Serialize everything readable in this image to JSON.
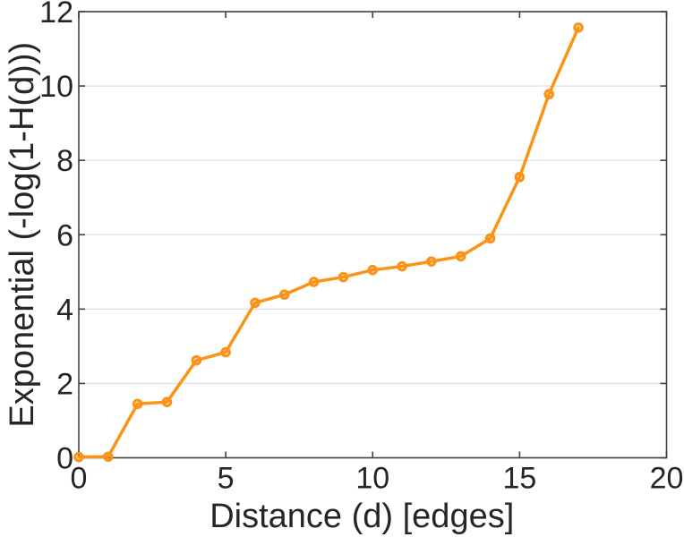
{
  "chart_data": {
    "type": "line",
    "title": "",
    "xlabel": "Distance (d) [edges]",
    "ylabel": "Exponential (-log(1-H(d)))",
    "x": [
      0,
      1,
      2,
      3,
      4,
      5,
      6,
      7,
      8,
      9,
      10,
      11,
      12,
      13,
      14,
      15,
      16,
      17
    ],
    "series": [
      {
        "name": "Exponential (-log(1-H(d)))",
        "values": [
          0.02,
          0.03,
          1.45,
          1.5,
          2.62,
          2.84,
          4.17,
          4.39,
          4.73,
          4.86,
          5.05,
          5.15,
          5.28,
          5.42,
          5.9,
          7.55,
          9.78,
          11.57
        ],
        "line_width": 3.5,
        "marker": "open-circle",
        "marker_radius": 4.2,
        "marker_stroke": 3.2,
        "color": "#FA9419"
      }
    ],
    "xlim": [
      0,
      20
    ],
    "ylim": [
      0,
      12
    ],
    "xticks": [
      0,
      5,
      10,
      15,
      20
    ],
    "xtick_labels": [
      "0",
      "5",
      "10",
      "15",
      "20"
    ],
    "yticks": [
      0,
      2,
      4,
      6,
      8,
      10,
      12
    ],
    "ytick_labels": [
      "0",
      "2",
      "4",
      "6",
      "8",
      "10",
      "12"
    ],
    "grid": "horizontal-only",
    "legend": "none",
    "box": true,
    "tick_direction": "in",
    "colors": {
      "line": "#FA9419",
      "grid": "#E2E2E2",
      "axis": "#404040",
      "text": "#262626",
      "background": "#FFFFFF"
    }
  }
}
